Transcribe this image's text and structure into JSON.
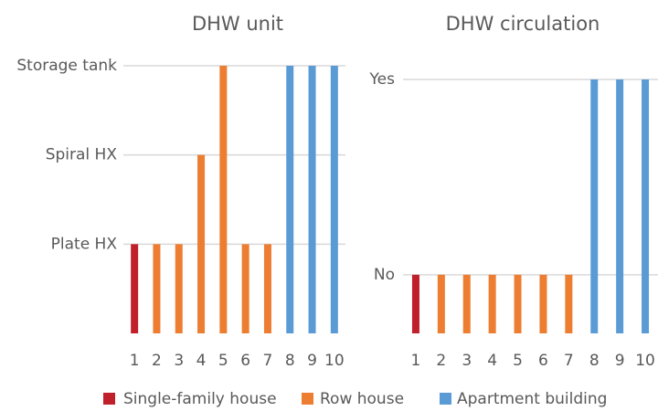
{
  "chart_data": [
    {
      "type": "bar",
      "title": "DHW unit",
      "categories": [
        "1",
        "2",
        "3",
        "4",
        "5",
        "6",
        "7",
        "8",
        "9",
        "10"
      ],
      "series": [
        {
          "name": "Single-family house",
          "color": "#c0202a",
          "values": [
            1,
            null,
            null,
            null,
            null,
            null,
            null,
            null,
            null,
            null
          ]
        },
        {
          "name": "Row house",
          "color": "#ed7d31",
          "values": [
            null,
            1,
            1,
            2,
            3,
            1,
            1,
            null,
            null,
            null
          ]
        },
        {
          "name": "Apartment building",
          "color": "#5b9bd5",
          "values": [
            null,
            null,
            null,
            null,
            null,
            null,
            null,
            3,
            3,
            3
          ]
        }
      ],
      "ylim": [
        0,
        3
      ],
      "yticks": [
        {
          "value": 1,
          "label": "Plate HX"
        },
        {
          "value": 2,
          "label": "Spiral HX"
        },
        {
          "value": 3,
          "label": "Storage tank"
        }
      ],
      "grid": true
    },
    {
      "type": "bar",
      "title": "DHW circulation",
      "categories": [
        "1",
        "2",
        "3",
        "4",
        "5",
        "6",
        "7",
        "8",
        "9",
        "10"
      ],
      "series": [
        {
          "color": "#c0202a",
          "values": [
            1,
            null,
            null,
            null,
            null,
            null,
            null,
            null,
            null,
            null
          ]
        },
        {
          "color": "#ed7d31",
          "values": [
            null,
            1,
            1,
            1,
            1,
            1,
            1,
            null,
            null,
            null
          ]
        },
        {
          "color": "#5b9bd5",
          "values": [
            null,
            null,
            null,
            null,
            null,
            null,
            null,
            2,
            2,
            2
          ]
        }
      ],
      "ylim": [
        0.7,
        2
      ],
      "yticks": [
        {
          "value": 1,
          "label": "No"
        },
        {
          "value": 2,
          "label": "Yes"
        }
      ],
      "grid": true
    }
  ]
}
